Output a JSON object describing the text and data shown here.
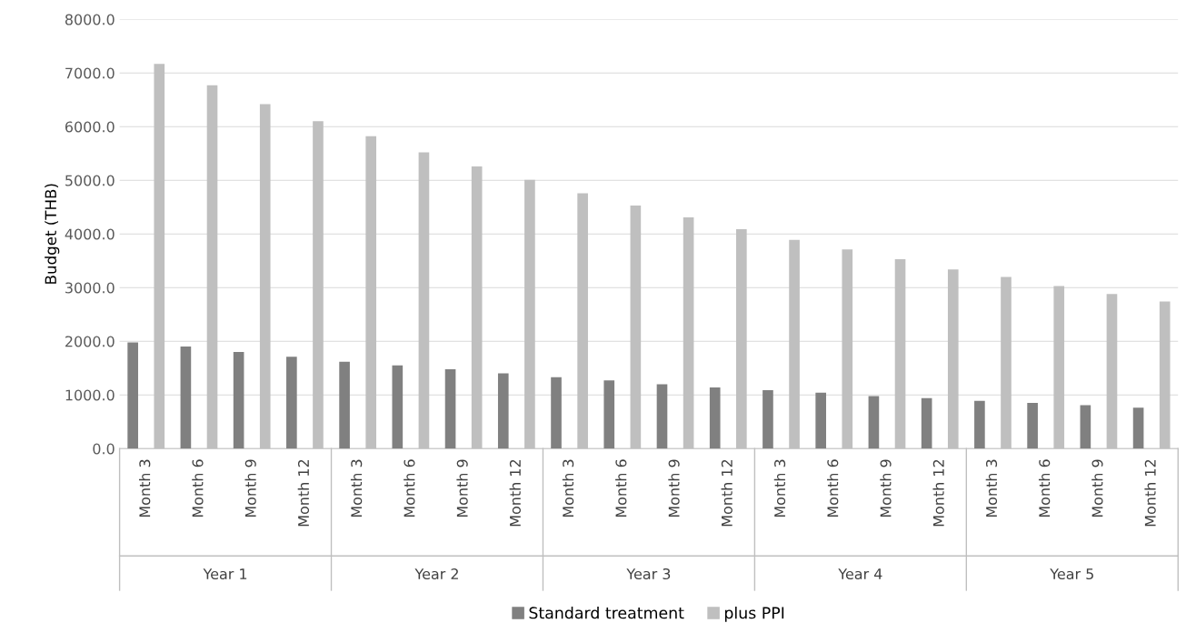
{
  "chart_data": {
    "type": "bar",
    "ylabel": "Budget (THB)",
    "categories": [
      "Month 3",
      "Month 6",
      "Month 9",
      "Month 12",
      "Month 3",
      "Month 6",
      "Month 9",
      "Month 12",
      "Month 3",
      "Month 6",
      "Month 9",
      "Month 12",
      "Month 3",
      "Month 6",
      "Month 9",
      "Month 12",
      "Month 3",
      "Month 6",
      "Month 9",
      "Month 12"
    ],
    "series": [
      {
        "name": "Standard treatment",
        "color": "#808080",
        "values": [
          1980,
          1900,
          1800,
          1710,
          1620,
          1550,
          1480,
          1400,
          1330,
          1270,
          1200,
          1140,
          1090,
          1040,
          980,
          940,
          890,
          850,
          810,
          760
        ]
      },
      {
        "name": "plus PPI",
        "color": "#bfbfbf",
        "values": [
          7170,
          6770,
          6420,
          6100,
          5820,
          5520,
          5260,
          5010,
          4760,
          4530,
          4310,
          4090,
          3890,
          3710,
          3530,
          3340,
          3200,
          3030,
          2880,
          2740
        ]
      }
    ],
    "annotations": [
      "Year 1",
      "Year 2",
      "Year 3",
      "Year 4",
      "Year 5"
    ],
    "ylim": [
      0,
      8000
    ],
    "yticks": [
      {
        "value": 0,
        "label": "0.0"
      },
      {
        "value": 1000,
        "label": "1000.0"
      },
      {
        "value": 2000,
        "label": "2000.0"
      },
      {
        "value": 3000,
        "label": "3000.0"
      },
      {
        "value": 4000,
        "label": "4000.0"
      },
      {
        "value": 5000,
        "label": "5000.0"
      },
      {
        "value": 6000,
        "label": "6000.0"
      },
      {
        "value": 7000,
        "label": "7000.0"
      },
      {
        "value": 8000,
        "label": "8000.0"
      }
    ],
    "grid": "y",
    "legend": "bottom"
  }
}
